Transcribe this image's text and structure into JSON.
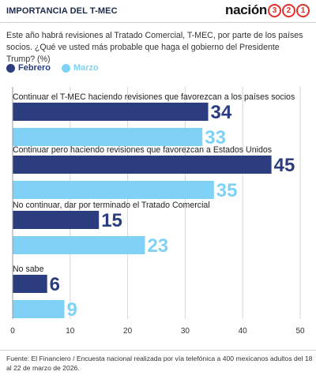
{
  "header": {
    "kicker": "IMPORTANCIA DEL T-MEC",
    "brand_word": "nación",
    "brand_digits": [
      "3",
      "2",
      "1"
    ]
  },
  "question": "Este año habrá revisiones al Tratado Comercial, T-MEC, por parte de los países socios. ¿Qué ve usted más probable que haga el gobierno del Presidente Trump? (%)",
  "footer": {
    "source": "Fuente: El Financiero / Encuesta nacional realizada por vía telefónica a 400 mexicanos adultos del 18 al 22 de marzo de 2026."
  },
  "chart_data": {
    "type": "bar",
    "orientation": "horizontal",
    "categories": [
      "Continuar el T-MEC haciendo revisiones que favorezcan a los países socios",
      "Continuar pero haciendo revisiones que favorezcan a Estados Unidos",
      "No continuar, dar por terminado el Tratado Comercial",
      "No sabe"
    ],
    "series": [
      {
        "name": "Febrero",
        "color": "#2b3d7e",
        "values": [
          34,
          45,
          15,
          6
        ]
      },
      {
        "name": "Marzo",
        "color": "#7fd2f5",
        "values": [
          33,
          35,
          23,
          9
        ]
      }
    ],
    "xlim": [
      0,
      50
    ],
    "xticks": [
      0,
      10,
      20,
      30,
      40,
      50
    ],
    "grid": true,
    "legend": "top-left"
  }
}
